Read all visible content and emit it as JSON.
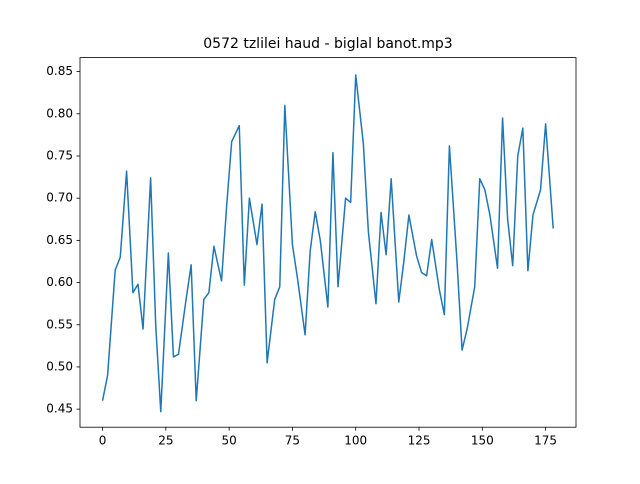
{
  "chart_data": {
    "type": "line",
    "title": "0572 tzlilei haud - biglal banot.mp3",
    "x": [
      0,
      2,
      5,
      7,
      9.5,
      12,
      14,
      16,
      19,
      21,
      23,
      26,
      28,
      30,
      33,
      35,
      37,
      40,
      42,
      44,
      47,
      49,
      51,
      54,
      56,
      58,
      61,
      63,
      65,
      68,
      70,
      72,
      75,
      77,
      80,
      82,
      84,
      86,
      89,
      91,
      93,
      96,
      98,
      100,
      103,
      105,
      108,
      110,
      112,
      114,
      117,
      119,
      121,
      124,
      126,
      128,
      130,
      133,
      135,
      137,
      140,
      142,
      144,
      147,
      149,
      151,
      153,
      156,
      158,
      160,
      162,
      164,
      166,
      168,
      170,
      173,
      175,
      178
    ],
    "series": [
      {
        "color": "#1f77b4",
        "values": [
          0.46,
          0.49,
          0.615,
          0.63,
          0.732,
          0.588,
          0.598,
          0.545,
          0.724,
          0.55,
          0.447,
          0.635,
          0.512,
          0.515,
          0.58,
          0.621,
          0.46,
          0.58,
          0.588,
          0.643,
          0.602,
          0.69,
          0.767,
          0.786,
          0.597,
          0.7,
          0.645,
          0.693,
          0.505,
          0.58,
          0.595,
          0.81,
          0.645,
          0.605,
          0.538,
          0.637,
          0.684,
          0.65,
          0.571,
          0.754,
          0.595,
          0.7,
          0.695,
          0.846,
          0.765,
          0.66,
          0.575,
          0.683,
          0.633,
          0.723,
          0.577,
          0.625,
          0.68,
          0.632,
          0.612,
          0.608,
          0.651,
          0.592,
          0.562,
          0.762,
          0.625,
          0.52,
          0.545,
          0.595,
          0.723,
          0.71,
          0.68,
          0.617,
          0.795,
          0.675,
          0.62,
          0.75,
          0.783,
          0.614,
          0.68,
          0.71,
          0.788,
          0.664
        ]
      }
    ],
    "xlim": [
      -8.9,
      187
    ],
    "xticks": [
      0,
      25,
      50,
      75,
      100,
      125,
      150,
      175
    ],
    "ylim": [
      0.4286,
      0.8666
    ],
    "yticks": [
      {
        "value": 0.45,
        "label": "0.45"
      },
      {
        "value": 0.5,
        "label": "0.50"
      },
      {
        "value": 0.55,
        "label": "0.55"
      },
      {
        "value": 0.6,
        "label": "0.60"
      },
      {
        "value": 0.65,
        "label": "0.65"
      },
      {
        "value": 0.7,
        "label": "0.70"
      },
      {
        "value": 0.75,
        "label": "0.75"
      },
      {
        "value": 0.8,
        "label": "0.80"
      },
      {
        "value": 0.85,
        "label": "0.85"
      }
    ]
  }
}
